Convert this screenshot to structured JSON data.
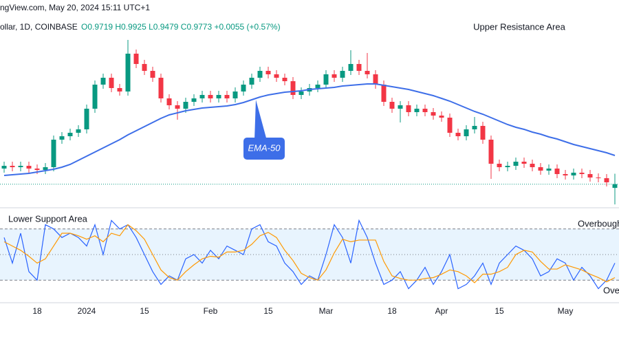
{
  "chart_data": [
    {
      "type": "candlestick",
      "title": "ngView.com, May 20, 2024 15:11 UTC+1",
      "subtitle": "ollar, 1D, COINBASE",
      "legend_text": "O0.9719 H0.9925 L0.9479 C0.9773 +0.0055 (+0.57%)",
      "categories": [
        null,
        null,
        null,
        null,
        "18",
        null,
        null,
        null,
        null,
        null,
        "2024",
        null,
        null,
        null,
        null,
        null,
        null,
        "15",
        null,
        null,
        null,
        null,
        null,
        null,
        null,
        "Feb",
        null,
        null,
        null,
        null,
        null,
        null,
        "15",
        null,
        null,
        null,
        null,
        null,
        null,
        "Mar",
        null,
        null,
        null,
        null,
        null,
        null,
        null,
        "18",
        null,
        null,
        null,
        null,
        null,
        "Apr",
        null,
        null,
        null,
        null,
        null,
        null,
        "15",
        null,
        null,
        null,
        null,
        null,
        null,
        null,
        "May",
        null,
        null,
        null,
        null,
        null,
        null
      ],
      "open": [
        1.0,
        1.004,
        1.002,
        1.004,
        1.0,
        0.998,
        1.002,
        1.042,
        1.047,
        1.052,
        1.057,
        1.087,
        1.122,
        1.132,
        1.117,
        1.112,
        1.167,
        1.152,
        1.142,
        1.132,
        1.102,
        1.092,
        1.087,
        1.097,
        1.102,
        1.107,
        1.102,
        1.107,
        1.102,
        1.112,
        1.122,
        1.132,
        1.142,
        1.137,
        1.132,
        1.127,
        1.107,
        1.112,
        1.117,
        1.122,
        1.137,
        1.132,
        1.142,
        1.152,
        1.142,
        1.137,
        1.122,
        1.097,
        1.087,
        1.092,
        1.082,
        1.087,
        1.082,
        1.077,
        1.074,
        1.052,
        1.047,
        1.057,
        1.062,
        1.042,
        1.007,
        1.002,
        1.004,
        1.01,
        1.007,
        1.002,
        0.997,
        1.0,
        0.992,
        0.99,
        0.994,
        0.992,
        0.987,
        0.986,
        0.9719
      ],
      "high": [
        1.01,
        1.01,
        1.01,
        1.01,
        1.006,
        1.008,
        1.048,
        1.053,
        1.058,
        1.063,
        1.093,
        1.128,
        1.138,
        1.138,
        1.123,
        1.187,
        1.173,
        1.158,
        1.148,
        1.138,
        1.108,
        1.098,
        1.103,
        1.108,
        1.113,
        1.113,
        1.113,
        1.113,
        1.118,
        1.128,
        1.138,
        1.148,
        1.148,
        1.143,
        1.138,
        1.133,
        1.118,
        1.123,
        1.128,
        1.143,
        1.143,
        1.148,
        1.172,
        1.158,
        1.168,
        1.143,
        1.128,
        1.103,
        1.098,
        1.098,
        1.093,
        1.093,
        1.088,
        1.083,
        1.08,
        1.058,
        1.063,
        1.075,
        1.068,
        1.048,
        1.013,
        1.01,
        1.016,
        1.016,
        1.013,
        1.008,
        1.006,
        1.006,
        0.998,
        1.0,
        1.0,
        0.998,
        0.993,
        0.992,
        0.9925
      ],
      "low": [
        0.994,
        0.996,
        0.996,
        0.994,
        0.992,
        0.992,
        0.996,
        1.036,
        1.041,
        1.046,
        1.051,
        1.081,
        1.116,
        1.111,
        1.106,
        1.106,
        1.146,
        1.136,
        1.126,
        1.096,
        1.086,
        1.071,
        1.081,
        1.091,
        1.096,
        1.096,
        1.096,
        1.096,
        1.096,
        1.106,
        1.116,
        1.126,
        1.131,
        1.126,
        1.121,
        1.101,
        1.101,
        1.106,
        1.111,
        1.116,
        1.126,
        1.126,
        1.136,
        1.136,
        1.131,
        1.116,
        1.091,
        1.081,
        1.067,
        1.076,
        1.076,
        1.076,
        1.071,
        1.068,
        1.046,
        1.041,
        1.041,
        1.051,
        1.036,
        0.985,
        0.996,
        0.996,
        0.998,
        1.001,
        0.996,
        0.991,
        0.991,
        0.986,
        0.984,
        0.984,
        0.986,
        0.981,
        0.98,
        0.974,
        0.9479
      ],
      "close": [
        1.004,
        1.002,
        1.004,
        1.0,
        0.998,
        1.002,
        1.042,
        1.047,
        1.052,
        1.057,
        1.087,
        1.122,
        1.132,
        1.117,
        1.112,
        1.167,
        1.152,
        1.142,
        1.132,
        1.102,
        1.092,
        1.087,
        1.097,
        1.102,
        1.107,
        1.102,
        1.107,
        1.102,
        1.112,
        1.122,
        1.132,
        1.142,
        1.137,
        1.132,
        1.127,
        1.107,
        1.112,
        1.117,
        1.122,
        1.137,
        1.132,
        1.142,
        1.152,
        1.142,
        1.137,
        1.122,
        1.097,
        1.087,
        1.092,
        1.082,
        1.087,
        1.082,
        1.077,
        1.074,
        1.052,
        1.047,
        1.057,
        1.062,
        1.042,
        1.007,
        1.002,
        1.004,
        1.01,
        1.007,
        1.002,
        0.997,
        1.0,
        0.992,
        0.99,
        0.994,
        0.992,
        0.987,
        0.986,
        0.98,
        0.9773
      ],
      "up_color": "#089981",
      "down_color": "#f23645",
      "ema": {
        "name": "EMA-50",
        "color": "#3d6ee8",
        "values": [
          0.99,
          0.991,
          0.992,
          0.993,
          0.995,
          0.997,
          0.999,
          1.002,
          1.006,
          1.012,
          1.018,
          1.024,
          1.03,
          1.036,
          1.042,
          1.049,
          1.055,
          1.061,
          1.067,
          1.073,
          1.078,
          1.081,
          1.084,
          1.086,
          1.088,
          1.089,
          1.09,
          1.091,
          1.093,
          1.096,
          1.1,
          1.104,
          1.107,
          1.109,
          1.111,
          1.112,
          1.113,
          1.115,
          1.116,
          1.117,
          1.118,
          1.12,
          1.121,
          1.122,
          1.123,
          1.123,
          1.121,
          1.119,
          1.117,
          1.115,
          1.112,
          1.109,
          1.106,
          1.102,
          1.098,
          1.093,
          1.088,
          1.083,
          1.079,
          1.074,
          1.069,
          1.064,
          1.06,
          1.057,
          1.053,
          1.05,
          1.046,
          1.043,
          1.039,
          1.035,
          1.032,
          1.029,
          1.026,
          1.023,
          1.019
        ]
      },
      "annotation": "Upper Resistance Area",
      "ylim": [
        0.945,
        1.24
      ]
    },
    {
      "type": "line",
      "series": [
        {
          "color": "#2962ff",
          "values": [
            70,
            40,
            75,
            30,
            20,
            85,
            80,
            70,
            75,
            70,
            60,
            85,
            50,
            90,
            80,
            85,
            70,
            50,
            30,
            15,
            25,
            20,
            45,
            50,
            40,
            55,
            45,
            60,
            55,
            50,
            80,
            85,
            65,
            60,
            40,
            30,
            15,
            25,
            20,
            50,
            85,
            70,
            40,
            90,
            70,
            40,
            15,
            20,
            30,
            10,
            20,
            35,
            15,
            30,
            50,
            10,
            15,
            25,
            40,
            15,
            40,
            50,
            60,
            55,
            45,
            25,
            30,
            45,
            40,
            20,
            35,
            25,
            10,
            20,
            40
          ]
        },
        {
          "color": "#ff9800",
          "values": [
            65,
            60,
            55,
            48,
            40,
            45,
            60,
            75,
            75,
            72,
            68,
            72,
            65,
            75,
            72,
            85,
            78,
            68,
            50,
            32,
            23,
            20,
            30,
            38,
            45,
            48,
            47,
            53,
            53,
            55,
            62,
            72,
            76,
            70,
            55,
            43,
            28,
            23,
            20,
            32,
            52,
            68,
            65,
            67,
            67,
            67,
            42,
            25,
            22,
            20,
            20,
            22,
            23,
            27,
            32,
            30,
            25,
            17,
            27,
            27,
            30,
            35,
            50,
            55,
            53,
            42,
            33,
            33,
            38,
            35,
            32,
            27,
            23,
            18,
            23
          ]
        }
      ],
      "levels": [
        80,
        50,
        20
      ],
      "annotations": [
        "Lower Support Area",
        "Overbough",
        "Ove"
      ],
      "ylim": [
        0,
        100
      ]
    }
  ]
}
